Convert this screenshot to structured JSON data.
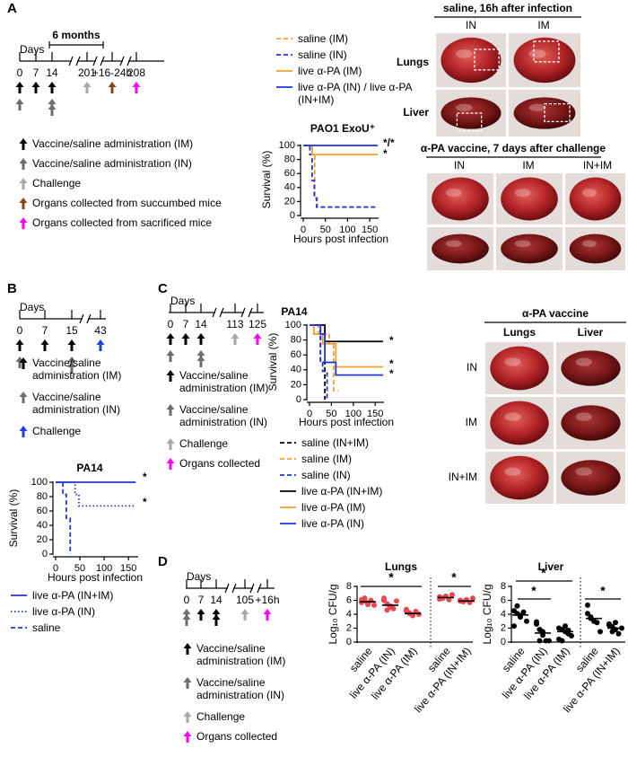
{
  "panel_labels": [
    "A",
    "B",
    "C",
    "D"
  ],
  "timelines": [
    {
      "days_label": "Days",
      "span_label": "6 months",
      "ticks": [
        0,
        7,
        14,
        201,
        "+16-24h",
        208
      ],
      "legend": [
        {
          "label": "Vaccine/saline administration (IM)",
          "color": "#000000"
        },
        {
          "label": "Vaccine/saline administration (IN)",
          "color": "#6d6d6d"
        },
        {
          "label": "Challenge",
          "color": "#a8a8a8"
        },
        {
          "label": "Organs collected from succumbed mice",
          "color": "#8b4513"
        },
        {
          "label": "Organs collected from sacrificed mice",
          "color": "#ff00ff"
        }
      ]
    },
    {
      "days_label": "Days",
      "ticks": [
        0,
        7,
        15,
        43
      ],
      "legend": [
        {
          "label": "Vaccine/saline administration (IM)",
          "color": "#000000"
        },
        {
          "label": "Vaccine/saline administration (IN)",
          "color": "#6d6d6d"
        },
        {
          "label": "Challenge",
          "color": "#2a3de0"
        }
      ]
    },
    {
      "days_label": "Days",
      "ticks": [
        0,
        7,
        14,
        113,
        125
      ],
      "legend": [
        {
          "label": "Vaccine/saline administration (IM)",
          "color": "#000000"
        },
        {
          "label": "Vaccine/saline administration (IN)",
          "color": "#6d6d6d"
        },
        {
          "label": "Challenge",
          "color": "#a8a8a8"
        },
        {
          "label": "Organs collected",
          "color": "#ff00ff"
        }
      ]
    },
    {
      "days_label": "Days",
      "ticks": [
        0,
        7,
        14,
        105,
        "+16h"
      ],
      "legend": [
        {
          "label": "Vaccine/saline administration (IM)",
          "color": "#000000"
        },
        {
          "label": "Vaccine/saline administration (IN)",
          "color": "#6d6d6d"
        },
        {
          "label": "Challenge",
          "color": "#a8a8a8"
        },
        {
          "label": "Organs collected",
          "color": "#ff00ff"
        }
      ]
    }
  ],
  "photos_a": {
    "top_title": "saline, 16h after infection",
    "top_columns": [
      "IN",
      "IM"
    ],
    "rows": [
      "Lungs",
      "Liver"
    ],
    "bottom_title": "α-PA vaccine, 7 days after challenge",
    "bottom_columns": [
      "IN",
      "IM",
      "IN+IM"
    ]
  },
  "photos_c": {
    "title": "α-PA vaccine",
    "columns": [
      "Lungs",
      "Liver"
    ],
    "rows": [
      "IN",
      "IM",
      "IN+IM"
    ]
  },
  "chart_data": [
    {
      "type": "line",
      "title": "PAO1 ExoU⁺",
      "x_label": "Hours post infection",
      "y_label": "Survival (%)",
      "xlim": [
        0,
        170
      ],
      "ylim": [
        0,
        100
      ],
      "xticks": [
        0,
        50,
        100,
        150
      ],
      "yticks": [
        0,
        20,
        40,
        60,
        80,
        100
      ],
      "series": [
        {
          "name": "saline (IM)",
          "color": "#f0a030",
          "dash": "dashed",
          "x": [
            0,
            20,
            20,
            26,
            26,
            32,
            32,
            168
          ],
          "values": [
            100,
            100,
            87,
            87,
            25,
            25,
            12,
            12
          ]
        },
        {
          "name": "saline (IN)",
          "color": "#2233dd",
          "dash": "dashed",
          "x": [
            0,
            15,
            15,
            20,
            20,
            25,
            25,
            30,
            30,
            168
          ],
          "values": [
            100,
            100,
            87,
            87,
            50,
            50,
            25,
            25,
            12,
            12
          ]
        },
        {
          "name": "live α-PA (IM)",
          "color": "#f0a030",
          "dash": "solid",
          "x": [
            0,
            20,
            20,
            168
          ],
          "values": [
            100,
            100,
            87,
            87
          ]
        },
        {
          "name": "live α-PA (IN) / live α-PA (IN+IM)",
          "color": "#2233dd",
          "dash": "solid",
          "x": [
            0,
            168
          ],
          "values": [
            100,
            100
          ]
        }
      ],
      "annotations": [
        "*/*",
        "*"
      ]
    },
    {
      "type": "line",
      "title": "PA14",
      "x_label": "Hours post infection",
      "y_label": "Survival (%)",
      "xlim": [
        0,
        170
      ],
      "ylim": [
        0,
        100
      ],
      "xticks": [
        0,
        50,
        100,
        150
      ],
      "yticks": [
        0,
        20,
        40,
        60,
        80,
        100
      ],
      "series": [
        {
          "name": "live α-PA (IN+IM)",
          "color": "#2233dd",
          "dash": "solid",
          "x": [
            0,
            165
          ],
          "values": [
            100,
            100
          ]
        },
        {
          "name": "live α-PA (IN)",
          "color": "#2233dd",
          "dash": "dotted",
          "x": [
            0,
            40,
            40,
            48,
            48,
            165
          ],
          "values": [
            100,
            100,
            83,
            83,
            67,
            67
          ]
        },
        {
          "name": "saline",
          "color": "#2233dd",
          "dash": "dashed",
          "x": [
            0,
            15,
            15,
            22,
            22,
            30,
            30
          ],
          "values": [
            100,
            100,
            83,
            83,
            50,
            50,
            0
          ]
        }
      ],
      "annotations": [
        "*",
        "*"
      ]
    },
    {
      "type": "line",
      "title": "PA14",
      "x_label": "Hours post infection",
      "y_label": "Survival (%)",
      "xlim": [
        0,
        170
      ],
      "ylim": [
        0,
        100
      ],
      "xticks": [
        0,
        50,
        100,
        150
      ],
      "yticks": [
        0,
        20,
        40,
        60,
        80,
        100
      ],
      "series": [
        {
          "name": "saline (IN+IM)",
          "color": "#000000",
          "dash": "dashed",
          "x": [
            0,
            25,
            25,
            35,
            35
          ],
          "values": [
            100,
            100,
            50,
            50,
            0
          ]
        },
        {
          "name": "saline (IM)",
          "color": "#f0a030",
          "dash": "dashed",
          "x": [
            0,
            20,
            20,
            45,
            45,
            55,
            55,
            65
          ],
          "values": [
            100,
            100,
            88,
            88,
            75,
            75,
            12,
            12
          ]
        },
        {
          "name": "saline (IN)",
          "color": "#2233dd",
          "dash": "dashed",
          "x": [
            0,
            25,
            25,
            30,
            30,
            40,
            40
          ],
          "values": [
            100,
            100,
            50,
            50,
            38,
            38,
            0
          ]
        },
        {
          "name": "live α-PA (IN+IM)",
          "color": "#000000",
          "dash": "solid",
          "x": [
            0,
            35,
            35,
            168
          ],
          "values": [
            100,
            100,
            78,
            78
          ]
        },
        {
          "name": "live α-PA (IM)",
          "color": "#f0a030",
          "dash": "solid",
          "x": [
            0,
            10,
            10,
            30,
            30,
            60,
            60,
            168
          ],
          "values": [
            100,
            100,
            88,
            88,
            75,
            75,
            44,
            44
          ]
        },
        {
          "name": "live α-PA (IN)",
          "color": "#2233dd",
          "dash": "solid",
          "x": [
            0,
            25,
            25,
            35,
            35,
            60,
            60,
            168
          ],
          "values": [
            100,
            100,
            88,
            88,
            50,
            50,
            33,
            33
          ]
        }
      ],
      "annotations": [
        "*",
        "*",
        "*"
      ]
    },
    {
      "type": "strip",
      "title": "Lungs",
      "y_label": "Log₁₀ CFU/g",
      "ylim": [
        0,
        8
      ],
      "yticks": [
        0,
        2,
        4,
        6,
        8
      ],
      "categories": [
        "saline",
        "live α-PA (IN)",
        "live α-PA (IM)",
        "saline",
        "live α-PA (IN+IM)"
      ],
      "values": [
        [
          6.1,
          5.9,
          5.6,
          6.0,
          5.3,
          5.7,
          6.3,
          5.4
        ],
        [
          6.0,
          5.5,
          5.2,
          4.8,
          5.9,
          6.3,
          4.6,
          5.0
        ],
        [
          4.5,
          4.2,
          3.9,
          4.4,
          4.0,
          4.7,
          4.1,
          3.8
        ],
        [
          6.5,
          6.3,
          6.6,
          6.1,
          6.8,
          6.2
        ],
        [
          6.0,
          5.8,
          6.1,
          5.7,
          6.3,
          5.9
        ]
      ],
      "medians": [
        5.8,
        5.3,
        4.1,
        6.4,
        5.9
      ],
      "color": "#e8474f",
      "annotations": [
        "*",
        "*"
      ]
    },
    {
      "type": "strip",
      "title": "Liver",
      "y_label": "Log₁₀ CFU/g",
      "ylim": [
        0,
        8
      ],
      "yticks": [
        0,
        2,
        4,
        6,
        8
      ],
      "categories": [
        "saline",
        "live α-PA (IN)",
        "live α-PA (IM)",
        "saline",
        "live α-PA (IN+IM)"
      ],
      "values": [
        [
          4.5,
          4.1,
          3.8,
          4.3,
          3.0,
          2.3,
          5.2,
          3.6
        ],
        [
          2.9,
          1.8,
          1.5,
          0.2,
          0.2,
          2.6,
          0.2,
          1.0
        ],
        [
          2.0,
          1.8,
          1.5,
          1.2,
          0.9,
          0.4,
          0.2,
          2.3,
          1.7
        ],
        [
          5.3,
          3.4,
          3.0,
          2.8,
          1.5,
          4.1,
          3.6
        ],
        [
          2.6,
          2.2,
          1.8,
          1.2,
          2.0,
          2.4,
          1.5,
          2.8
        ]
      ],
      "medians": [
        3.9,
        1.3,
        1.5,
        3.4,
        2.0
      ],
      "color": "#000000",
      "annotations": [
        "*",
        "*",
        "*"
      ]
    }
  ]
}
